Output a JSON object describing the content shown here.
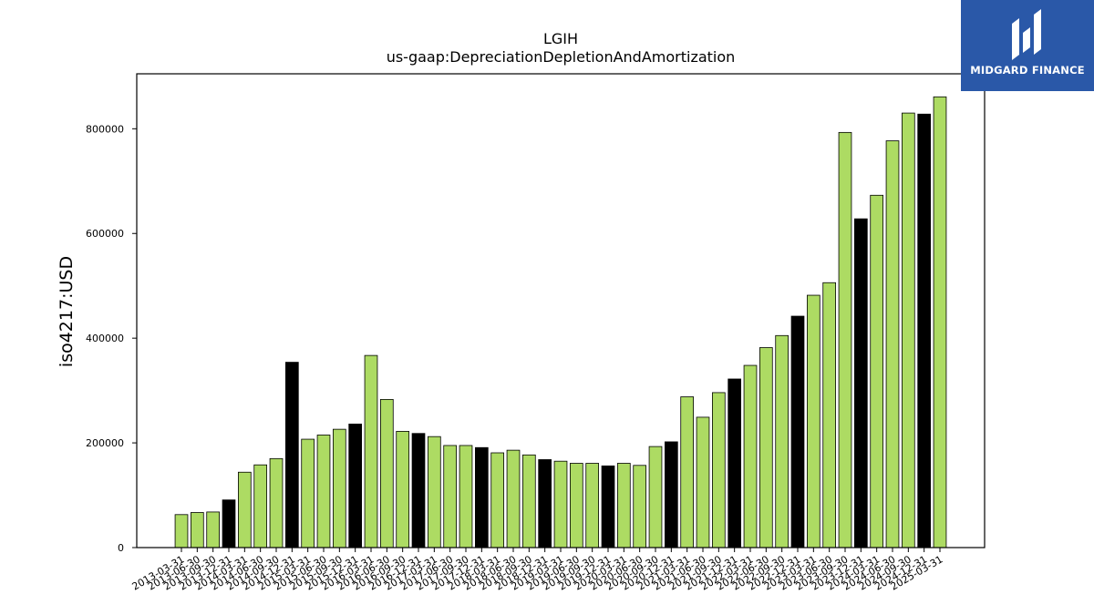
{
  "colors": {
    "green": "#addb63",
    "black": "#000000",
    "bar_edge": "#000000",
    "logo_bg": "#2a58a8",
    "logo_fg": "#ffffff"
  },
  "brand": {
    "logo_text": "MIDGARD FINANCE",
    "icon": "midgard-logo-icon"
  },
  "chart_data": {
    "type": "bar",
    "title": "LGIH",
    "subtitle": "us-gaap:DepreciationDepletionAndAmortization",
    "xlabel": "",
    "ylabel": "iso4217:USD",
    "ylim": [
      0,
      905000
    ],
    "yticks": [
      0,
      200000,
      400000,
      600000,
      800000
    ],
    "grid": false,
    "categories": [
      "2013-03-31",
      "2013-06-30",
      "2013-09-30",
      "2013-12-31",
      "2014-03-31",
      "2014-06-30",
      "2014-09-30",
      "2014-12-31",
      "2015-03-31",
      "2015-06-30",
      "2015-09-30",
      "2015-12-31",
      "2016-03-31",
      "2016-06-30",
      "2016-09-30",
      "2016-12-31",
      "2017-03-31",
      "2017-06-30",
      "2017-09-30",
      "2017-12-31",
      "2018-03-31",
      "2018-06-30",
      "2018-09-30",
      "2018-12-31",
      "2019-03-31",
      "2019-06-30",
      "2019-09-30",
      "2019-12-31",
      "2020-03-31",
      "2020-06-30",
      "2020-09-30",
      "2020-12-31",
      "2021-03-31",
      "2021-06-30",
      "2021-09-30",
      "2021-12-31",
      "2022-03-31",
      "2022-06-30",
      "2022-09-30",
      "2022-12-31",
      "2023-03-31",
      "2023-06-30",
      "2023-09-30",
      "2023-12-31",
      "2024-03-31",
      "2024-06-30",
      "2024-09-30",
      "2024-12-31",
      "2025-03-31"
    ],
    "values": [
      63000,
      67000,
      68000,
      91000,
      144000,
      158000,
      170000,
      354000,
      207000,
      215000,
      226000,
      236000,
      367000,
      283000,
      222000,
      218000,
      212000,
      195000,
      195000,
      191000,
      181000,
      186000,
      177000,
      168000,
      165000,
      161000,
      161000,
      156000,
      161000,
      157000,
      193000,
      202000,
      288000,
      249000,
      296000,
      322000,
      348000,
      382000,
      405000,
      442000,
      482000,
      506000,
      793000,
      628000,
      673000,
      777000,
      830000,
      828000,
      861000
    ],
    "bar_color_keys": [
      "green",
      "green",
      "green",
      "black",
      "green",
      "green",
      "green",
      "black",
      "green",
      "green",
      "green",
      "black",
      "green",
      "green",
      "green",
      "black",
      "green",
      "green",
      "green",
      "black",
      "green",
      "green",
      "green",
      "black",
      "green",
      "green",
      "green",
      "black",
      "green",
      "green",
      "green",
      "black",
      "green",
      "green",
      "green",
      "black",
      "green",
      "green",
      "green",
      "black",
      "green",
      "green",
      "green",
      "black",
      "green",
      "green",
      "green",
      "black",
      "green"
    ]
  }
}
